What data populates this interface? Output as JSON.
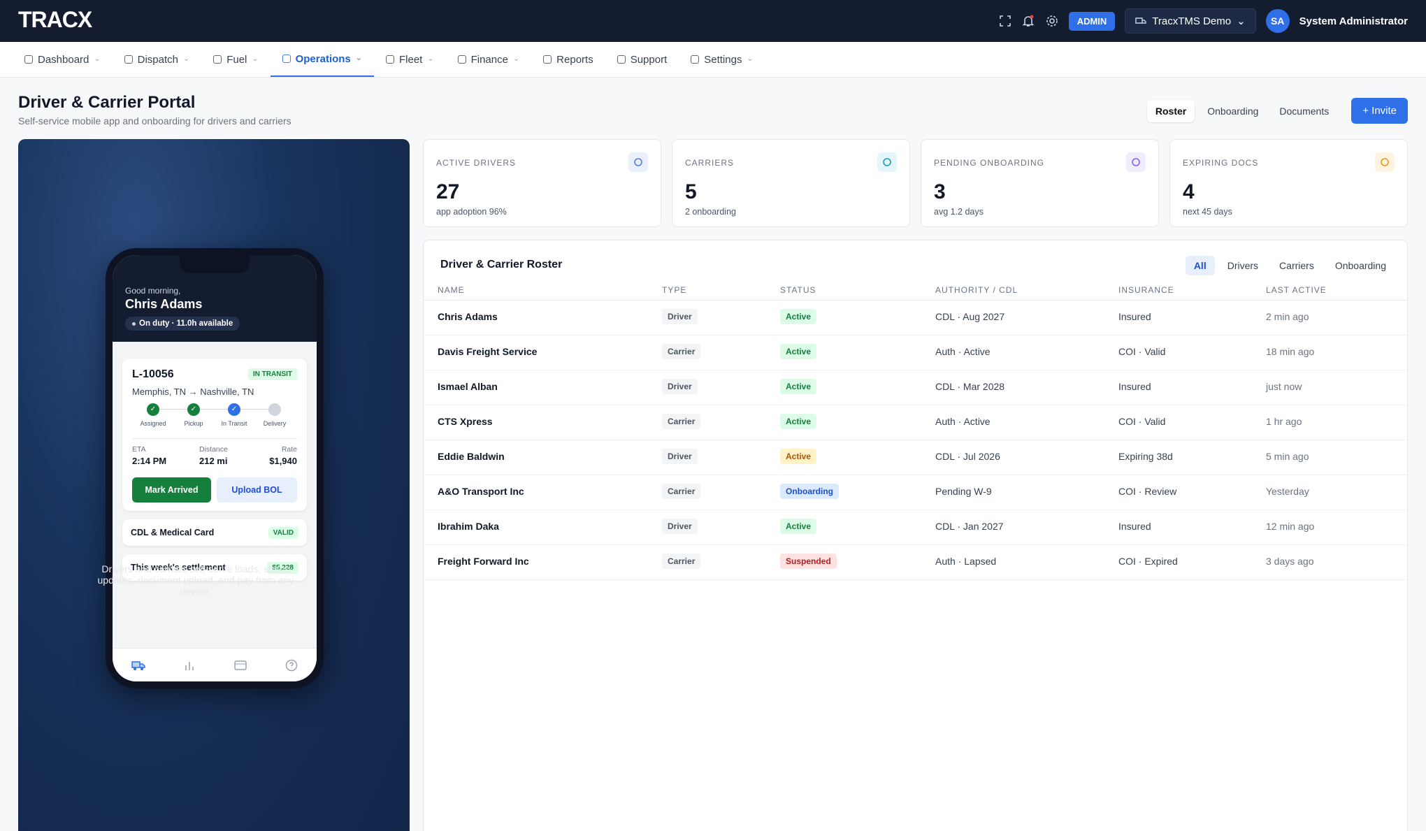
{
  "header": {
    "logo": "TRACX",
    "role": "ADMIN",
    "company": "TracxTMS Demo",
    "avatar": "SA",
    "user": "System Administrator"
  },
  "nav": [
    {
      "label": "Dashboard",
      "menu": true
    },
    {
      "label": "Dispatch",
      "menu": true
    },
    {
      "label": "Fuel",
      "menu": true
    },
    {
      "label": "Operations",
      "menu": true,
      "active": true
    },
    {
      "label": "Fleet",
      "menu": true
    },
    {
      "label": "Finance",
      "menu": true
    },
    {
      "label": "Reports",
      "menu": false
    },
    {
      "label": "Support",
      "menu": false
    },
    {
      "label": "Settings",
      "menu": true
    }
  ],
  "page": {
    "title": "Driver & Carrier Portal",
    "subtitle": "Self-service mobile app and onboarding for drivers and carriers",
    "tabs": [
      "Roster",
      "Onboarding",
      "Documents"
    ],
    "active_tab": 0,
    "invite": "+ Invite"
  },
  "phone": {
    "greeting": "Good morning,",
    "name": "Chris Adams",
    "status": "On duty · 11.0h available",
    "load": "L-10056",
    "load_badge": "IN TRANSIT",
    "route": "Memphis, TN → Nashville, TN",
    "steps": [
      {
        "label": "Assigned",
        "state": "done"
      },
      {
        "label": "Pickup",
        "state": "done"
      },
      {
        "label": "In Transit",
        "state": "current"
      },
      {
        "label": "Delivery",
        "state": "pending"
      }
    ],
    "facts": [
      {
        "label": "ETA",
        "value": "2:14 PM"
      },
      {
        "label": "Distance",
        "value": "212 mi"
      },
      {
        "label": "Rate",
        "value": "$1,940"
      }
    ],
    "primary": "Mark Arrived",
    "secondary": "Upload BOL",
    "cards": [
      {
        "label": "CDL & Medical Card",
        "badge": "VALID"
      },
      {
        "label": "This week's settlement",
        "badge": "$5,228"
      }
    ]
  },
  "caption": "Drivers and carriers self-serve loads, status updates, document upload, and pay from any device.",
  "kpis": [
    {
      "label": "ACTIVE DRIVERS",
      "value": "27",
      "note": "app adoption 96%",
      "color": "#4f7fe0",
      "bg": "#eaf0fd"
    },
    {
      "label": "CARRIERS",
      "value": "5",
      "note": "2 onboarding",
      "color": "#1d9ab5",
      "bg": "#e5f6fa"
    },
    {
      "label": "PENDING ONBOARDING",
      "value": "3",
      "note": "avg 1.2 days",
      "color": "#8b5cf6",
      "bg": "#f1ecfe"
    },
    {
      "label": "EXPIRING DOCS",
      "value": "4",
      "note": "next 45 days",
      "color": "#e49a1a",
      "bg": "#fdf3e1"
    }
  ],
  "roster": {
    "title": "Driver & Carrier Roster",
    "filters": [
      "All",
      "Drivers",
      "Carriers",
      "Onboarding"
    ],
    "active_filter": 0,
    "columns": [
      "NAME",
      "TYPE",
      "STATUS",
      "AUTHORITY / CDL",
      "INSURANCE",
      "LAST ACTIVE"
    ],
    "rows": [
      [
        "Chris Adams",
        "Driver",
        "Active",
        "CDL · Aug 2027",
        "Insured",
        "2 min ago"
      ],
      [
        "Davis Freight Service",
        "Carrier",
        "Active",
        "Auth · Active",
        "COI · Valid",
        "18 min ago"
      ],
      [
        "Ismael Alban",
        "Driver",
        "Active",
        "CDL · Mar 2028",
        "Insured",
        "just now"
      ],
      [
        "CTS Xpress",
        "Carrier",
        "Active",
        "Auth · Active",
        "COI · Valid",
        "1 hr ago"
      ],
      [
        "Eddie Baldwin",
        "Driver",
        "Active",
        "CDL · Jul 2026",
        "Expiring 38d",
        "5 min ago"
      ],
      [
        "A&O Transport Inc",
        "Carrier",
        "Onboarding",
        "Pending W-9",
        "COI · Review",
        "Yesterday"
      ],
      [
        "Ibrahim Daka",
        "Driver",
        "Active",
        "CDL · Jan 2027",
        "Insured",
        "12 min ago"
      ],
      [
        "Freight Forward Inc",
        "Carrier",
        "Suspended",
        "Auth · Lapsed",
        "COI · Expired",
        "3 days ago"
      ]
    ],
    "status_tones": [
      "green",
      "green",
      "green",
      "green",
      "amber",
      "blue",
      "green",
      "red"
    ]
  }
}
